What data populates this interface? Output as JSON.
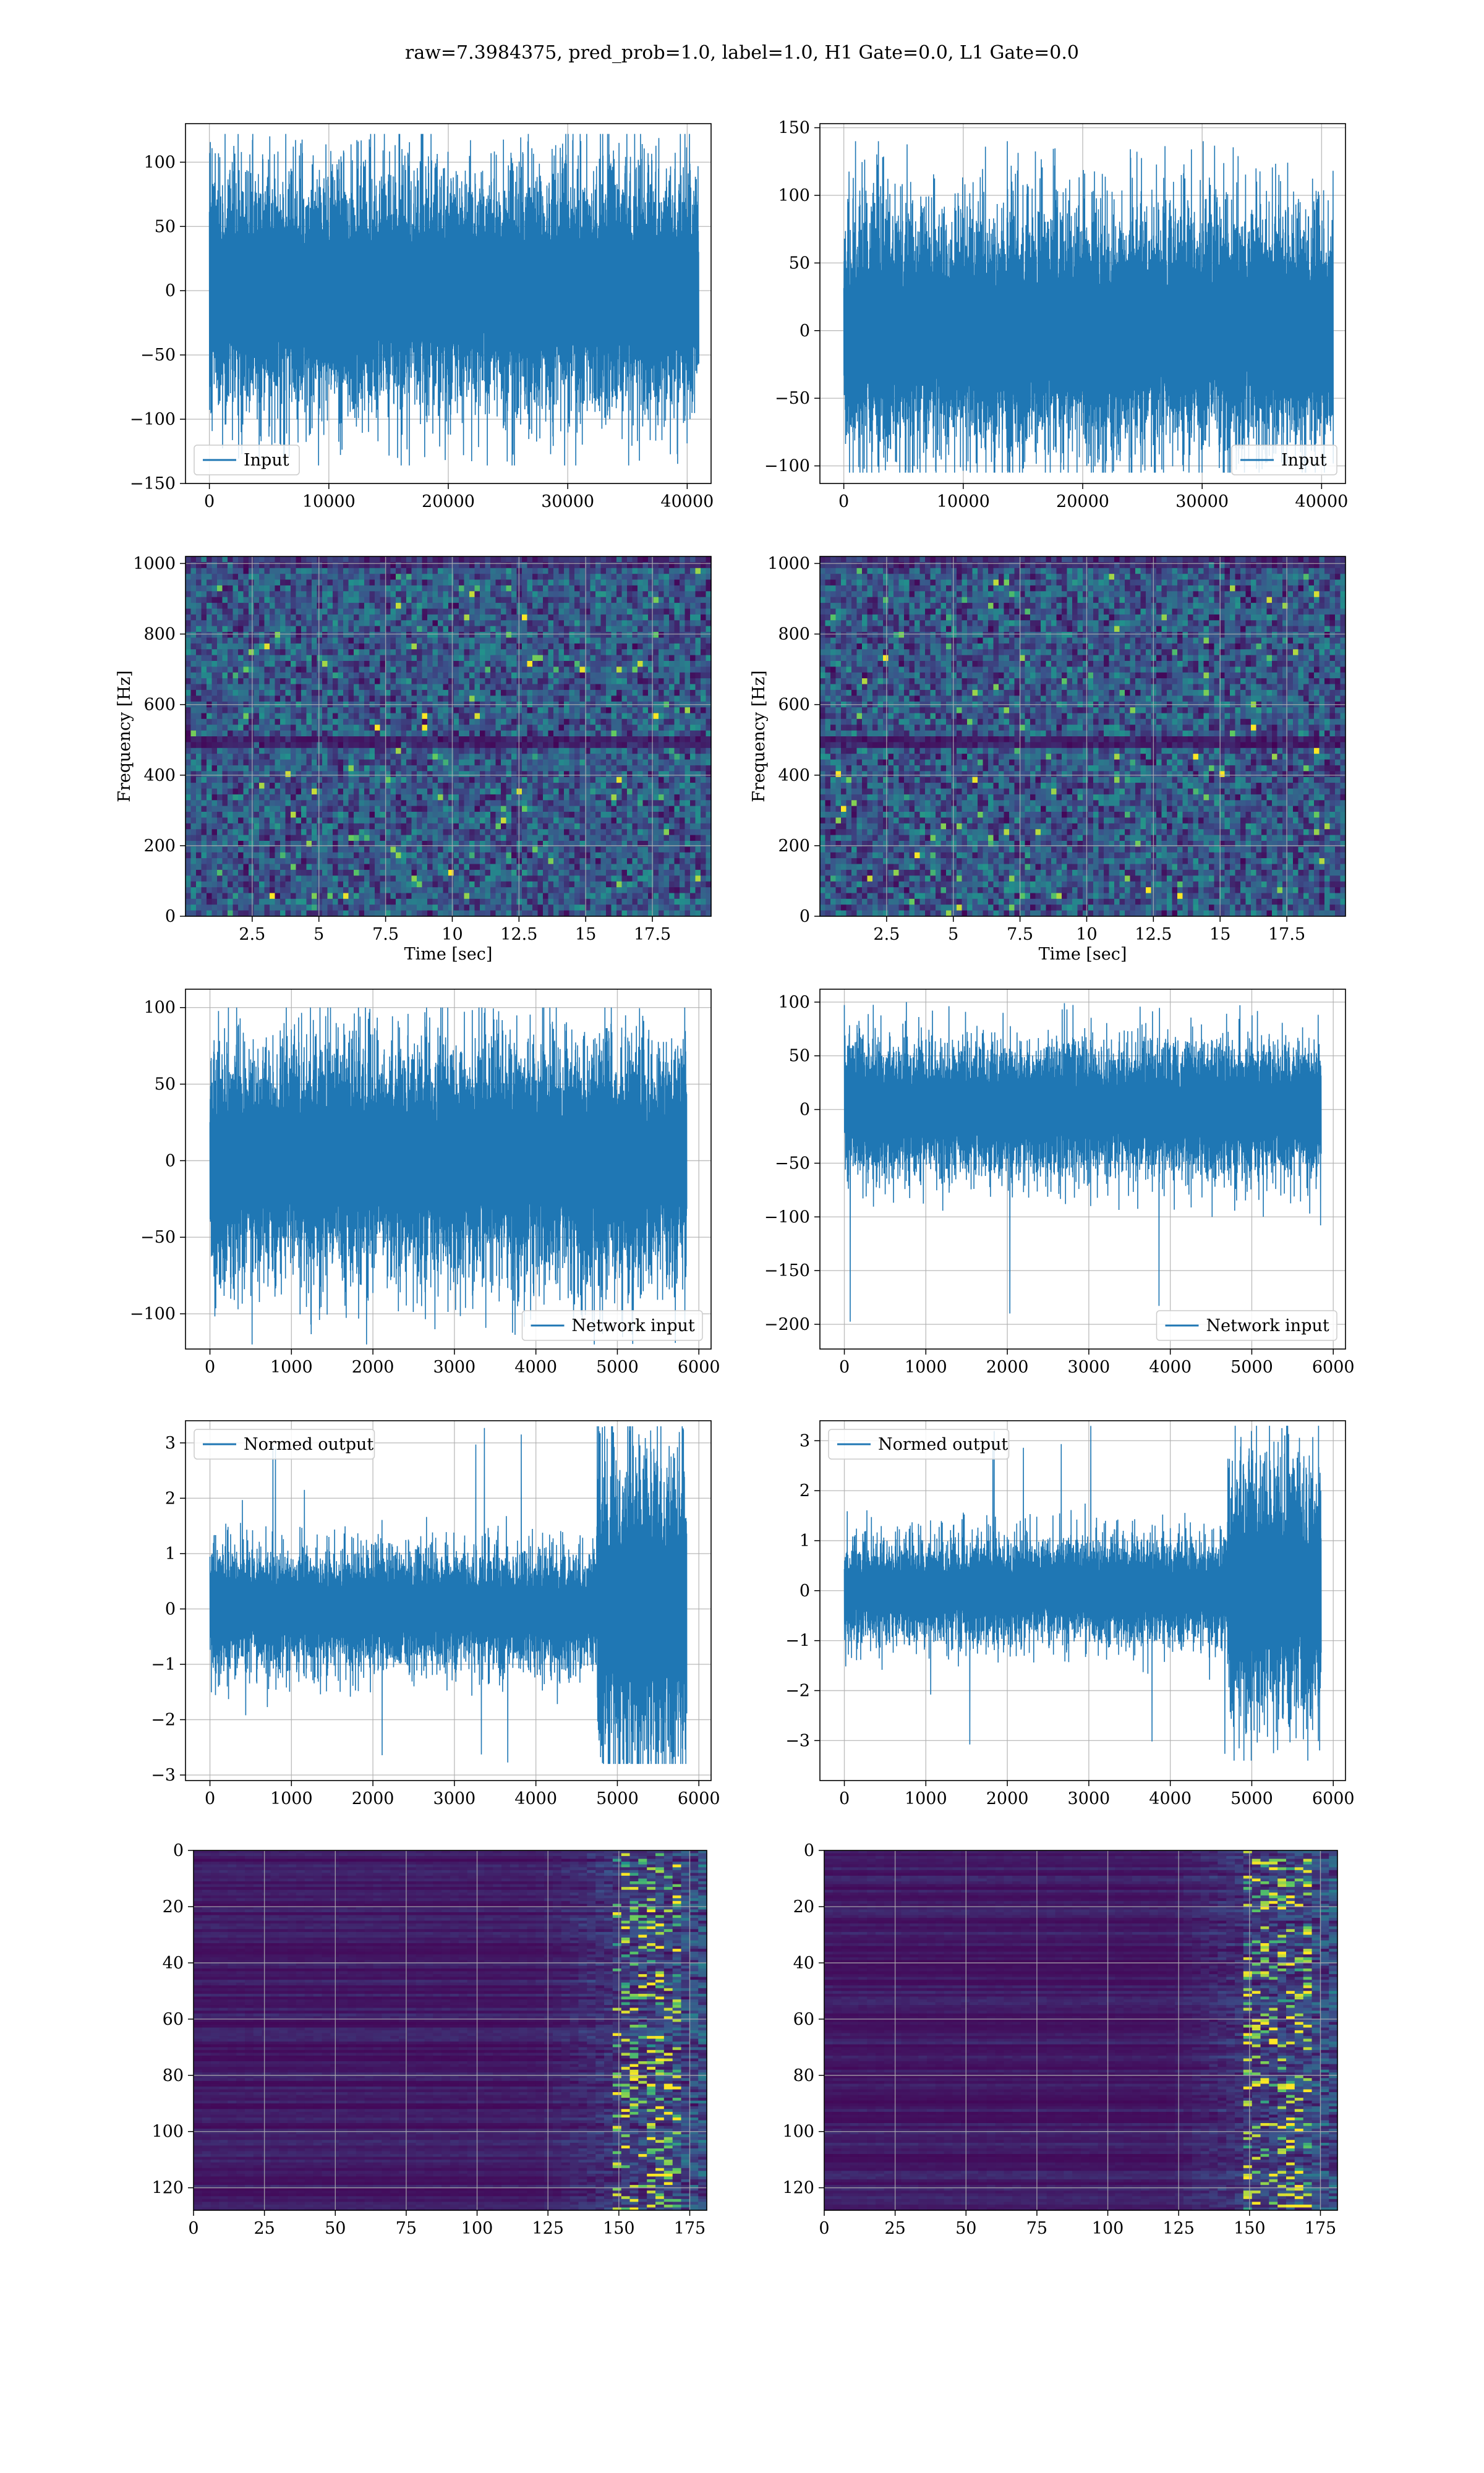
{
  "figure": {
    "title": "raw=7.3984375, pred_prob=1.0, label=1.0, H1 Gate=0.0, L1 Gate=0.0"
  },
  "colors": {
    "series": "#1f77b4",
    "grid": "#b0b0b0",
    "viridis_low": "#440154",
    "viridis_mid": "#21918c",
    "viridis_high": "#fde725"
  },
  "chart_data": [
    {
      "id": "h1-input",
      "type": "line",
      "series": [
        {
          "name": "Input"
        }
      ],
      "xlim": [
        -2000,
        42000
      ],
      "ylim": [
        -150,
        130
      ],
      "xticks": [
        0,
        10000,
        20000,
        30000,
        40000
      ],
      "yticks": [
        -150,
        -100,
        -50,
        0,
        50,
        100
      ],
      "signal": {
        "x_start": 0,
        "x_end": 40960,
        "amp": 33,
        "peak": 122,
        "min": -136
      },
      "legend_position": "lower left",
      "grid": true
    },
    {
      "id": "l1-input",
      "type": "line",
      "series": [
        {
          "name": "Input"
        }
      ],
      "xlim": [
        -2000,
        42000
      ],
      "ylim": [
        -113,
        153
      ],
      "xticks": [
        0,
        10000,
        20000,
        30000,
        40000
      ],
      "yticks": [
        -100,
        -50,
        0,
        50,
        100,
        150
      ],
      "signal": {
        "x_start": 0,
        "x_end": 40960,
        "amp": 32,
        "peak": 140,
        "min": -105
      },
      "legend_position": "lower right",
      "grid": true
    },
    {
      "id": "h1-spectrogram",
      "type": "heatmap",
      "xlim": [
        0,
        19.7
      ],
      "ylim": [
        0,
        1020
      ],
      "xticks": [
        2.5,
        5.0,
        7.5,
        10.0,
        12.5,
        15.0,
        17.5
      ],
      "yticks": [
        0,
        200,
        400,
        600,
        800,
        1000
      ],
      "xlabel": "Time [sec]",
      "ylabel": "Frequency [Hz]",
      "grid": true
    },
    {
      "id": "l1-spectrogram",
      "type": "heatmap",
      "xlim": [
        0,
        19.7
      ],
      "ylim": [
        0,
        1020
      ],
      "xticks": [
        2.5,
        5.0,
        7.5,
        10.0,
        12.5,
        15.0,
        17.5
      ],
      "yticks": [
        0,
        200,
        400,
        600,
        800,
        1000
      ],
      "xlabel": "Time [sec]",
      "ylabel": "Frequency [Hz]",
      "grid": true
    },
    {
      "id": "h1-network-input",
      "type": "line",
      "series": [
        {
          "name": "Network input"
        }
      ],
      "xlim": [
        -300,
        6150
      ],
      "ylim": [
        -123,
        112
      ],
      "xticks": [
        0,
        1000,
        2000,
        3000,
        4000,
        5000,
        6000
      ],
      "yticks": [
        -100,
        -50,
        0,
        50,
        100
      ],
      "signal": {
        "x_start": 0,
        "x_end": 5850,
        "amp": 27,
        "peak": 100,
        "min": -120
      },
      "legend_position": "lower right",
      "grid": true
    },
    {
      "id": "l1-network-input",
      "type": "line",
      "series": [
        {
          "name": "Network input"
        }
      ],
      "xlim": [
        -300,
        6150
      ],
      "ylim": [
        -223,
        112
      ],
      "xticks": [
        0,
        1000,
        2000,
        3000,
        4000,
        5000,
        6000
      ],
      "yticks": [
        -200,
        -150,
        -100,
        -50,
        0,
        50,
        100
      ],
      "signal": {
        "x_start": 0,
        "x_end": 5850,
        "amp": 22,
        "peak": 100,
        "min": -200
      },
      "legend_position": "lower right",
      "grid": true
    },
    {
      "id": "h1-normed-output",
      "type": "line",
      "series": [
        {
          "name": "Normed output"
        }
      ],
      "xlim": [
        -300,
        6150
      ],
      "ylim": [
        -3.1,
        3.4
      ],
      "xticks": [
        0,
        1000,
        2000,
        3000,
        4000,
        5000,
        6000
      ],
      "yticks": [
        -3,
        -2,
        -1,
        0,
        1,
        2,
        3
      ],
      "signal": {
        "x_start": 0,
        "x_end": 5850,
        "amp": 0.38,
        "burst_start": 4750,
        "burst_amp": 1.0,
        "peak": 3.3,
        "min": -2.8
      },
      "legend_position": "upper left",
      "grid": true
    },
    {
      "id": "l1-normed-output",
      "type": "line",
      "series": [
        {
          "name": "Normed output"
        }
      ],
      "xlim": [
        -300,
        6150
      ],
      "ylim": [
        -3.8,
        3.4
      ],
      "xticks": [
        0,
        1000,
        2000,
        3000,
        4000,
        5000,
        6000
      ],
      "yticks": [
        -3,
        -2,
        -1,
        0,
        1,
        2,
        3
      ],
      "signal": {
        "x_start": 0,
        "x_end": 5850,
        "amp": 0.36,
        "burst_start": 4700,
        "burst_amp": 0.9,
        "peak": 3.3,
        "min": -3.4
      },
      "legend_position": "upper left",
      "grid": true
    },
    {
      "id": "h1-feature-map",
      "type": "heatmap",
      "xlim": [
        0,
        181
      ],
      "ylim": [
        128,
        0
      ],
      "xticks": [
        0,
        25,
        50,
        75,
        100,
        125,
        150,
        175
      ],
      "yticks": [
        0,
        20,
        40,
        60,
        80,
        100,
        120
      ],
      "grid": true
    },
    {
      "id": "l1-feature-map",
      "type": "heatmap",
      "xlim": [
        0,
        181
      ],
      "ylim": [
        128,
        0
      ],
      "xticks": [
        0,
        25,
        50,
        75,
        100,
        125,
        150,
        175
      ],
      "yticks": [
        0,
        20,
        40,
        60,
        80,
        100,
        120
      ],
      "grid": true
    }
  ]
}
